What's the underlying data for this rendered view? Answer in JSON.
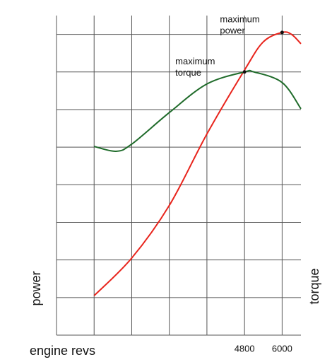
{
  "chart_data": {
    "type": "line",
    "x_label": "engine revs",
    "y_label": "power",
    "y2_label": "torque",
    "xlim": [
      -1200,
      6600
    ],
    "ylim": [
      0,
      8.5
    ],
    "xgrid": [
      -1200,
      0,
      1200,
      2400,
      3600,
      4800,
      6000
    ],
    "ygrid": [
      1,
      2,
      3,
      4,
      5,
      6,
      7,
      8
    ],
    "xticks": [
      4800,
      6000
    ],
    "grid": true,
    "series": [
      {
        "name": "power",
        "color": "#e8241c",
        "x": [
          0,
          1200,
          2400,
          3600,
          4800,
          5400,
          6000,
          6300,
          6600
        ],
        "values": [
          1.05,
          2.05,
          3.45,
          5.35,
          7.05,
          7.8,
          8.05,
          8.0,
          7.75
        ]
      },
      {
        "name": "torque",
        "color": "#1f6b2a",
        "x": [
          0,
          700,
          1200,
          2400,
          3600,
          4800,
          5100,
          6000,
          6600
        ],
        "values": [
          5.02,
          4.89,
          5.08,
          5.92,
          6.68,
          7.0,
          7.0,
          6.72,
          6.02
        ]
      }
    ],
    "annotations": [
      {
        "lines": [
          "maximum",
          "power"
        ]
      },
      {
        "lines": [
          "maximum",
          "torque"
        ]
      }
    ]
  }
}
